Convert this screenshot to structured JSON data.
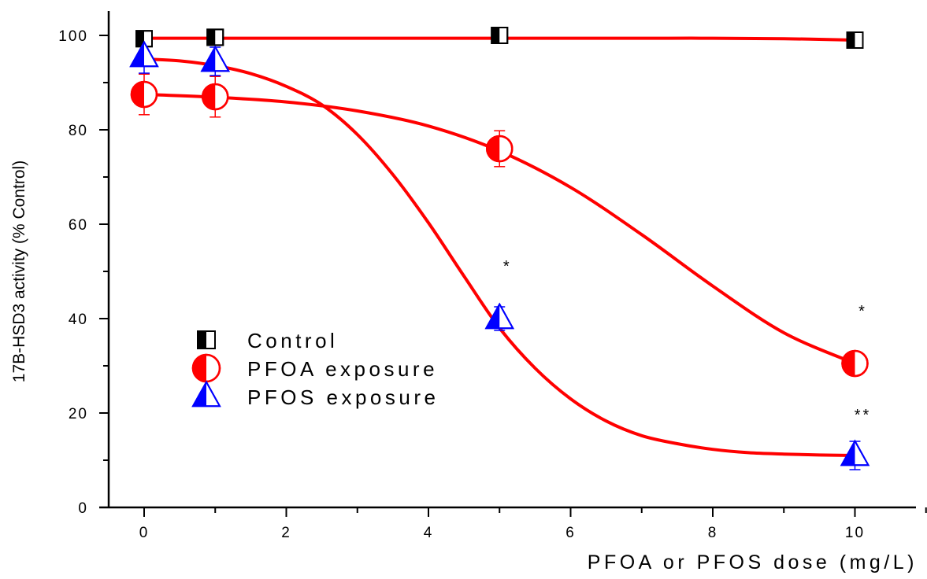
{
  "chart_data": {
    "type": "scatter",
    "title": "",
    "xlabel": "PFOA or PFOS dose (mg/L)",
    "ylabel": "17B-HSD3 activity (% Control)",
    "xlim": [
      -0.5,
      11
    ],
    "ylim": [
      0,
      105
    ],
    "xticks": [
      0,
      2,
      4,
      6,
      8,
      10
    ],
    "yticks": [
      0,
      20,
      40,
      60,
      80,
      100
    ],
    "xtick_labels": [
      "0",
      "2",
      "4",
      "6",
      "8",
      "10"
    ],
    "ytick_labels": [
      "0",
      "20",
      "40",
      "60",
      "80",
      "100"
    ],
    "grid": false,
    "legend": "center-left",
    "series": [
      {
        "name": "Control",
        "marker": "square-half",
        "color": "#000000",
        "line_color": "#ff0000",
        "x": [
          0,
          1,
          5,
          10
        ],
        "y": [
          99.3,
          99.6,
          100.0,
          99.0
        ],
        "err": [
          0,
          0,
          0,
          0
        ],
        "fit_x": [
          0,
          1,
          2,
          3,
          4,
          5,
          6,
          7,
          8,
          9,
          10
        ],
        "fit_y": [
          99.4,
          99.4,
          99.4,
          99.4,
          99.4,
          99.4,
          99.4,
          99.4,
          99.4,
          99.3,
          99.0
        ],
        "annotations": []
      },
      {
        "name": "PFOA exposure",
        "marker": "circle-half",
        "color": "#ff0000",
        "line_color": "#ff0000",
        "x": [
          0,
          1,
          5,
          10
        ],
        "y": [
          87.5,
          87.0,
          76.0,
          30.5
        ],
        "err": [
          4.3,
          4.3,
          3.8,
          0
        ],
        "fit_x": [
          0,
          1,
          2,
          3,
          4,
          5,
          6,
          7,
          8,
          9,
          10
        ],
        "fit_y": [
          87.5,
          86.9,
          85.9,
          84.0,
          80.8,
          75.5,
          67.8,
          57.8,
          46.9,
          37.0,
          30.5
        ],
        "annotations": [
          {
            "x": 10,
            "y": 40.5,
            "text": "*"
          }
        ]
      },
      {
        "name": "PFOS exposure",
        "marker": "triangle-half",
        "color": "#0000ff",
        "line_color": "#ff0000",
        "x": [
          0,
          1,
          5,
          10
        ],
        "y": [
          95.5,
          94.5,
          40.0,
          11.0
        ],
        "err": [
          3.5,
          3.0,
          2.5,
          3.0
        ],
        "fit_x": [
          0,
          0.5,
          1,
          1.5,
          2,
          2.5,
          3,
          3.5,
          4,
          4.5,
          5,
          5.5,
          6,
          6.5,
          7,
          7.5,
          8,
          8.5,
          9,
          9.5,
          10
        ],
        "fit_y": [
          95.0,
          94.6,
          93.6,
          91.9,
          89.2,
          85.3,
          79.0,
          70.5,
          60.3,
          49.0,
          38.0,
          29.5,
          23.0,
          18.3,
          15.2,
          13.5,
          12.3,
          11.6,
          11.3,
          11.1,
          11.0
        ],
        "annotations": [
          {
            "x": 10,
            "y": 18.5,
            "text": "**"
          },
          {
            "x": 5,
            "y": 50.0,
            "text": "*"
          }
        ]
      }
    ]
  }
}
